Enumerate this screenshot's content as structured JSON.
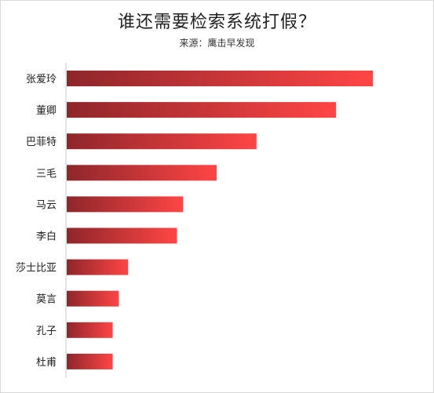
{
  "title": "谁还需要检索系统打假？",
  "subtitle": "来源：鹰击早发现",
  "colors": {
    "bar_dark": "#8e262a",
    "bar_light": "#ff4545",
    "axis": "#cccccc",
    "text": "#222222"
  },
  "chart_data": {
    "type": "bar",
    "orientation": "horizontal",
    "title": "谁还需要检索系统打假？",
    "subtitle": "来源：鹰击早发现",
    "categories": [
      "张爱玲",
      "董卿",
      "巴菲特",
      "三毛",
      "马云",
      "李白",
      "莎士比亚",
      "莫言",
      "孔子",
      "杜甫"
    ],
    "values": [
      100,
      88,
      62,
      49,
      38,
      36,
      20,
      17,
      15,
      15
    ],
    "xlim": [
      0,
      100
    ],
    "grid": false,
    "legend": "none"
  }
}
